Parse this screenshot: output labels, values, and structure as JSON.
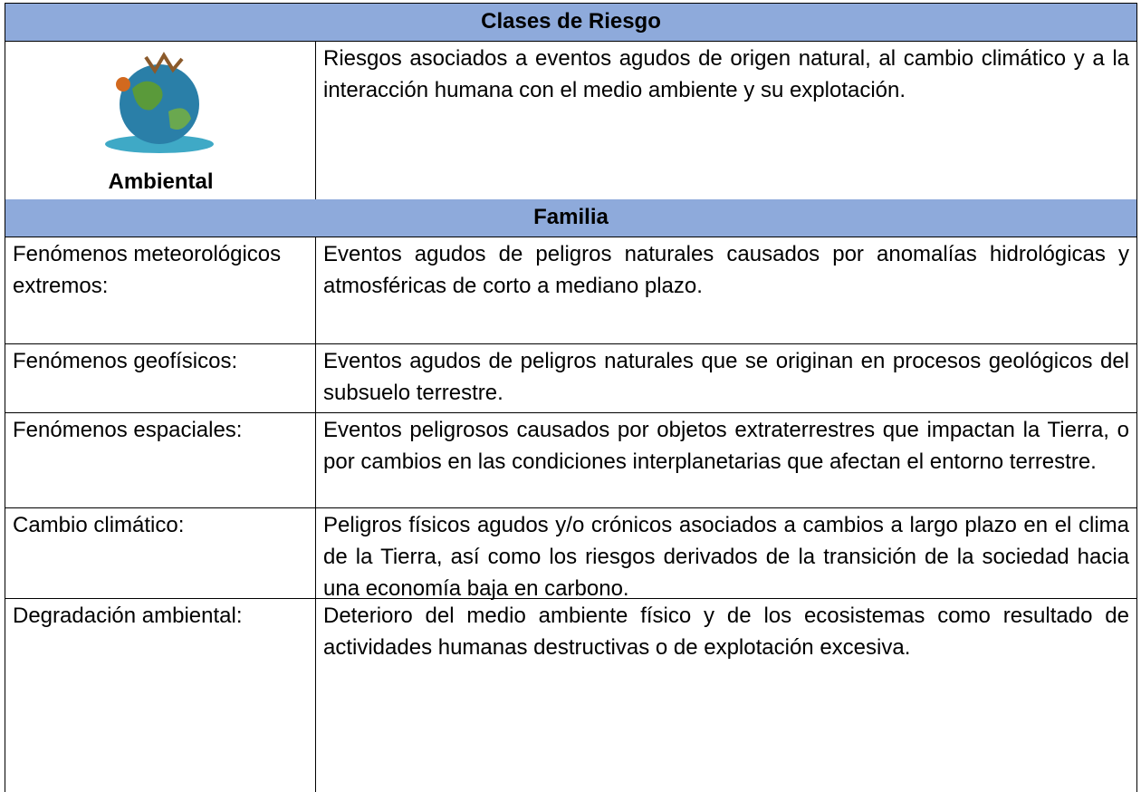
{
  "header": {
    "title": "Clases de Riesgo"
  },
  "ambiental": {
    "label": "Ambiental",
    "description": "Riesgos asociados a eventos agudos de origen natural, al cambio climático y a la interacción humana con el medio ambiente y su explotación."
  },
  "familia": {
    "title": "Familia",
    "rows": [
      [
        "Fenómenos meteorológicos extremos:",
        "Eventos agudos de peligros naturales causados por anomalías hidrológicas y atmosféricas de corto a mediano plazo."
      ],
      [
        "Fenómenos geofísicos:",
        "Eventos agudos de peligros naturales que se originan en procesos geológicos del subsuelo terrestre."
      ],
      [
        "Fenómenos espaciales:",
        "Eventos peligrosos causados por objetos extraterrestres que impactan la Tierra, o por cambios en las condiciones interplanetarias que afectan el entorno terrestre."
      ],
      [
        "Cambio climático:",
        "Peligros físicos agudos y/o crónicos asociados a cambios a largo plazo en el clima de la Tierra, así como los riesgos derivados de la transición de la sociedad hacia una economía baja en carbono."
      ],
      [
        "Degradación ambiental:",
        "Deterioro del medio ambiente físico y de los ecosistemas como resultado de actividades humanas destructivas o de explotación excesiva."
      ]
    ]
  }
}
